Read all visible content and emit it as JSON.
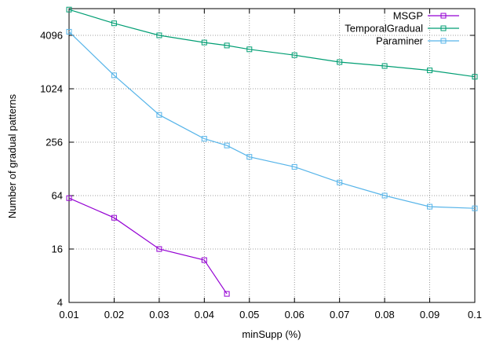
{
  "chart_data": {
    "type": "line",
    "xlabel": "minSupp (%)",
    "ylabel": "Number of gradual patterns",
    "xlim": [
      0.01,
      0.1
    ],
    "ylim": [
      4,
      8192
    ],
    "yscale": "log2",
    "grid": true,
    "legend_position": "top-right",
    "x_ticks": [
      0.01,
      0.02,
      0.03,
      0.04,
      0.05,
      0.06,
      0.07,
      0.08,
      0.09,
      0.1
    ],
    "x_tick_labels": [
      "0.01",
      "0.02",
      "0.03",
      "0.04",
      "0.05",
      "0.06",
      "0.07",
      "0.08",
      "0.09",
      "0.1"
    ],
    "y_ticks": [
      4,
      16,
      64,
      256,
      1024,
      4096
    ],
    "y_tick_labels": [
      "4",
      "16",
      "64",
      "256",
      "1024",
      "4096"
    ],
    "series": [
      {
        "name": "MSGP",
        "color": "#9400d3",
        "marker": "square-open",
        "x": [
          0.01,
          0.02,
          0.03,
          0.04,
          0.045
        ],
        "y": [
          60,
          36,
          16,
          12,
          5
        ]
      },
      {
        "name": "TemporalGradual",
        "color": "#009e73",
        "marker": "square-open",
        "x": [
          0.01,
          0.02,
          0.03,
          0.04,
          0.045,
          0.05,
          0.06,
          0.07,
          0.08,
          0.09,
          0.1
        ],
        "y": [
          8000,
          5600,
          4100,
          3400,
          3150,
          2850,
          2450,
          2050,
          1850,
          1650,
          1400
        ]
      },
      {
        "name": "Paraminer",
        "color": "#56b4e9",
        "marker": "square-open",
        "x": [
          0.01,
          0.02,
          0.03,
          0.04,
          0.045,
          0.05,
          0.06,
          0.07,
          0.08,
          0.09,
          0.1
        ],
        "y": [
          4500,
          1450,
          520,
          280,
          235,
          175,
          135,
          90,
          64,
          48,
          46
        ]
      }
    ]
  }
}
